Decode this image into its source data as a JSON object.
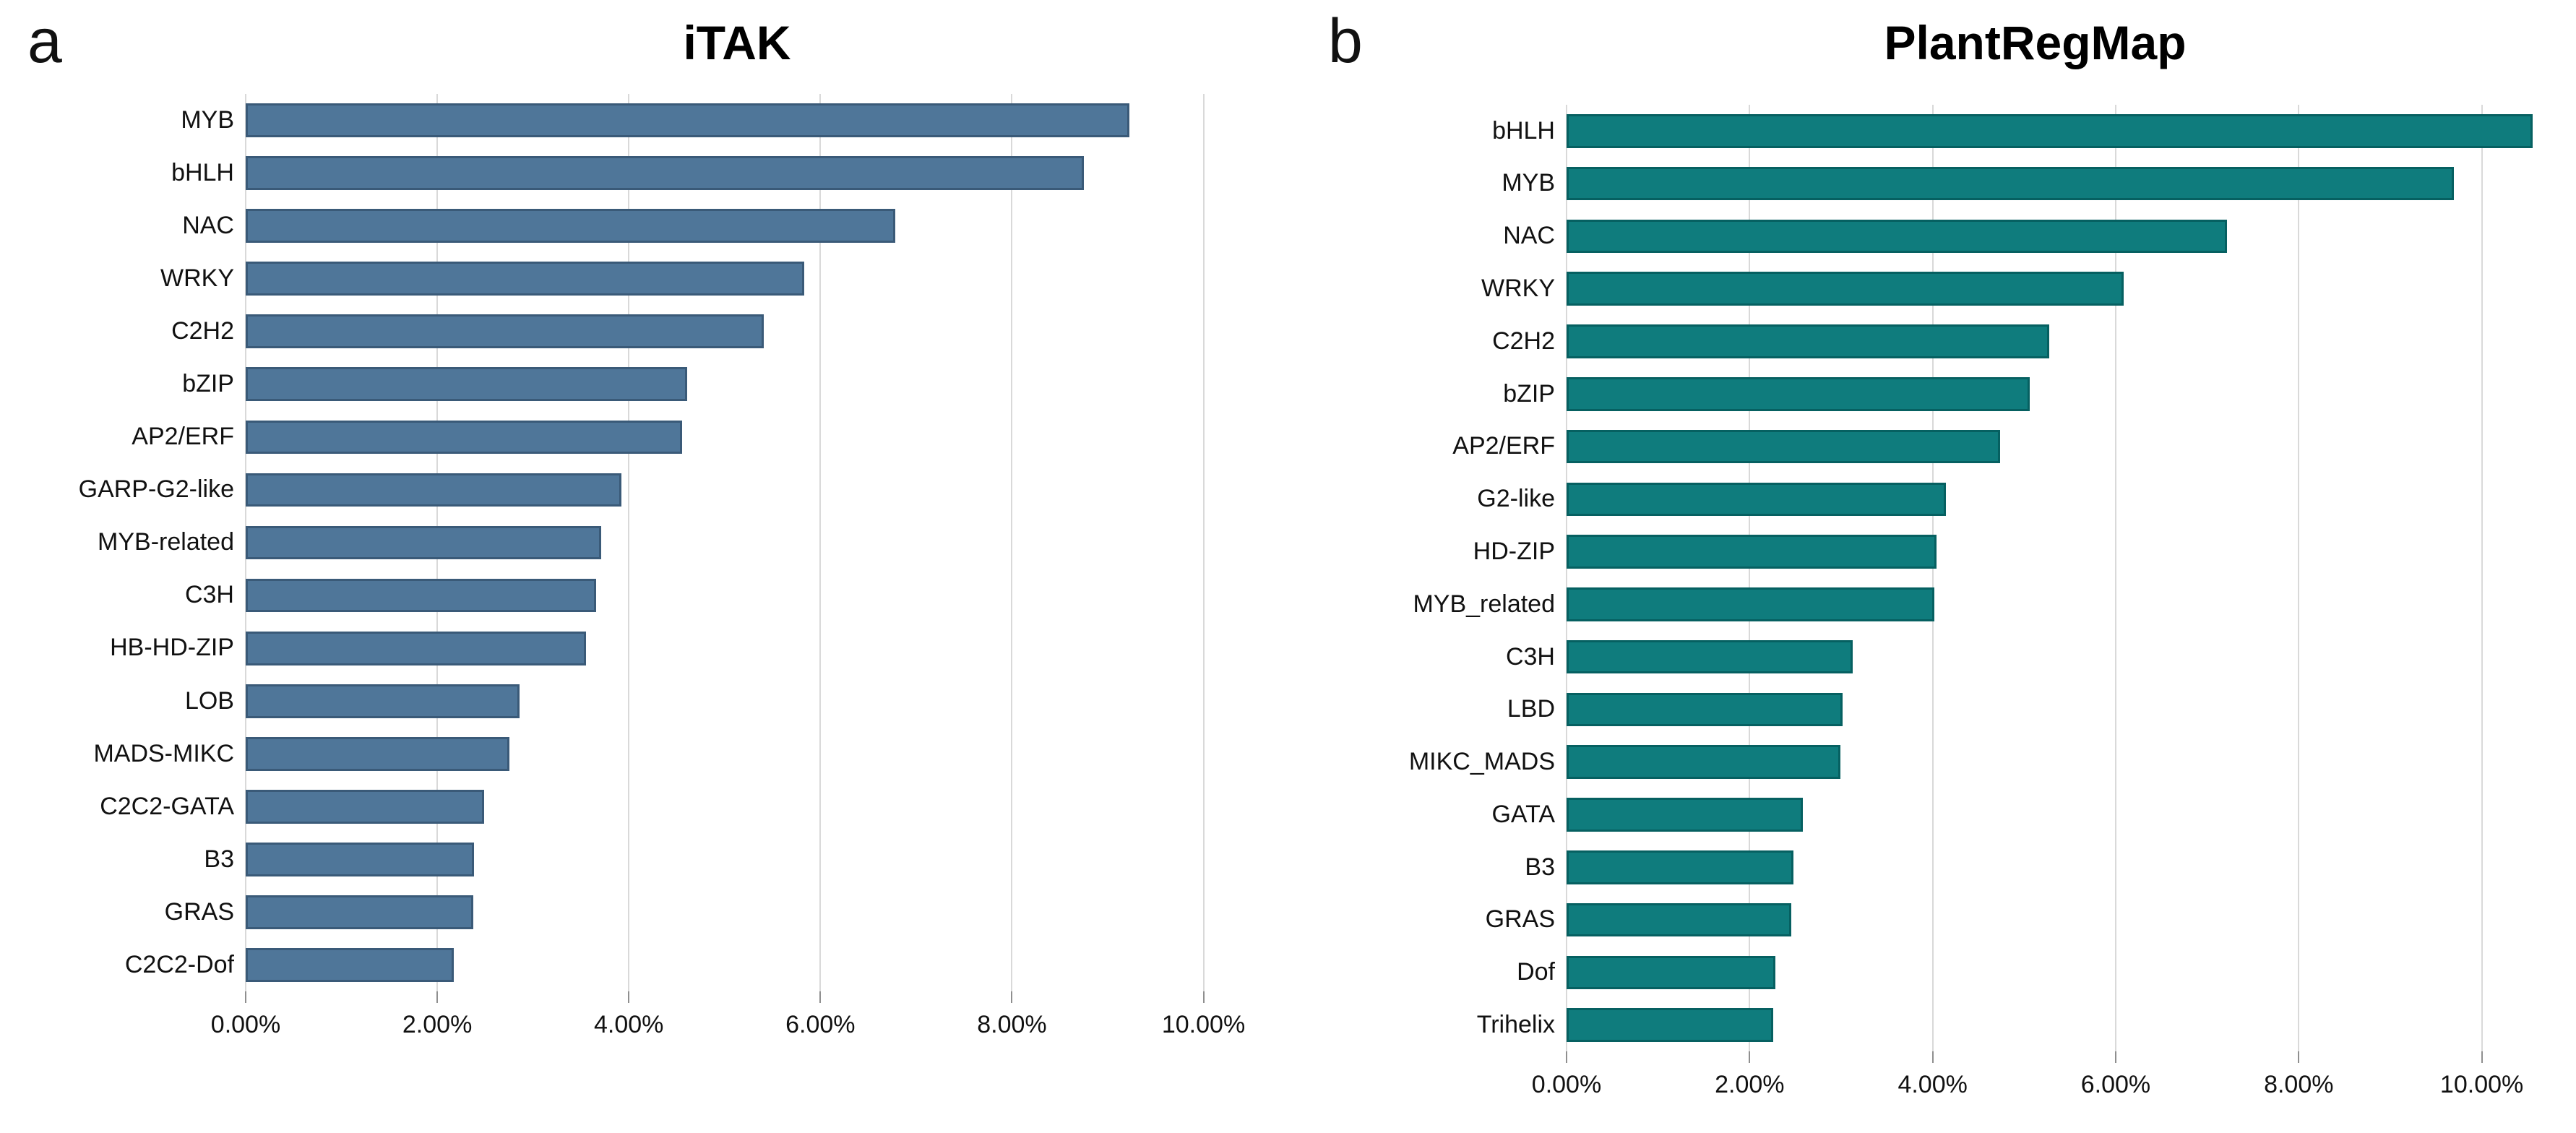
{
  "figure": {
    "background_color": "#ffffff",
    "gridline_color": "#d9d9d9",
    "tick_color": "#8f8f8f",
    "text_color": "#111111"
  },
  "chart_data": [
    {
      "type": "bar",
      "orientation": "horizontal",
      "panel_letter": "a",
      "title": "iTAK",
      "bar_color": "#4f7699",
      "bar_border_color": "#3a5a78",
      "xlabel": "",
      "ylabel": "",
      "xlim": [
        0,
        10
      ],
      "grid": true,
      "x_tick_labels": [
        "0.00%",
        "2.00%",
        "4.00%",
        "6.00%",
        "8.00%",
        "10.00%"
      ],
      "x_tick_values": [
        0,
        2,
        4,
        6,
        8,
        10
      ],
      "categories": [
        "MYB",
        "bHLH",
        "NAC",
        "WRKY",
        "C2H2",
        "bZIP",
        "AP2/ERF",
        "GARP-G2-like",
        "MYB-related",
        "C3H",
        "HB-HD-ZIP",
        "LOB",
        "MADS-MIKC",
        "C2C2-GATA",
        "B3",
        "GRAS",
        "C2C2-Dof"
      ],
      "values": [
        8.7,
        8.25,
        6.4,
        5.5,
        5.1,
        4.35,
        4.3,
        3.7,
        3.5,
        3.45,
        3.35,
        2.7,
        2.6,
        2.35,
        2.25,
        2.24,
        2.05
      ],
      "value_unit": "%"
    },
    {
      "type": "bar",
      "orientation": "horizontal",
      "panel_letter": "b",
      "title": "PlantRegMap",
      "bar_color": "#0f7c7d",
      "bar_border_color": "#066061",
      "xlabel": "",
      "ylabel": "",
      "xlim": [
        0,
        10
      ],
      "grid": true,
      "x_tick_labels": [
        "0.00%",
        "2.00%",
        "4.00%",
        "6.00%",
        "8.00%",
        "10.00%"
      ],
      "x_tick_values": [
        0,
        2,
        4,
        6,
        8,
        10
      ],
      "categories": [
        "bHLH",
        "MYB",
        "NAC",
        "WRKY",
        "C2H2",
        "bZIP",
        "AP2/ERF",
        "G2-like",
        "HD-ZIP",
        "MYB_related",
        "C3H",
        "LBD",
        "MIKC_MADS",
        "GATA",
        "B3",
        "GRAS",
        "Dof",
        "Trihelix"
      ],
      "values": [
        9.8,
        9.0,
        6.7,
        5.65,
        4.9,
        4.7,
        4.4,
        3.85,
        3.75,
        3.73,
        2.9,
        2.8,
        2.78,
        2.4,
        2.3,
        2.28,
        2.12,
        2.1
      ],
      "value_unit": "%"
    }
  ]
}
